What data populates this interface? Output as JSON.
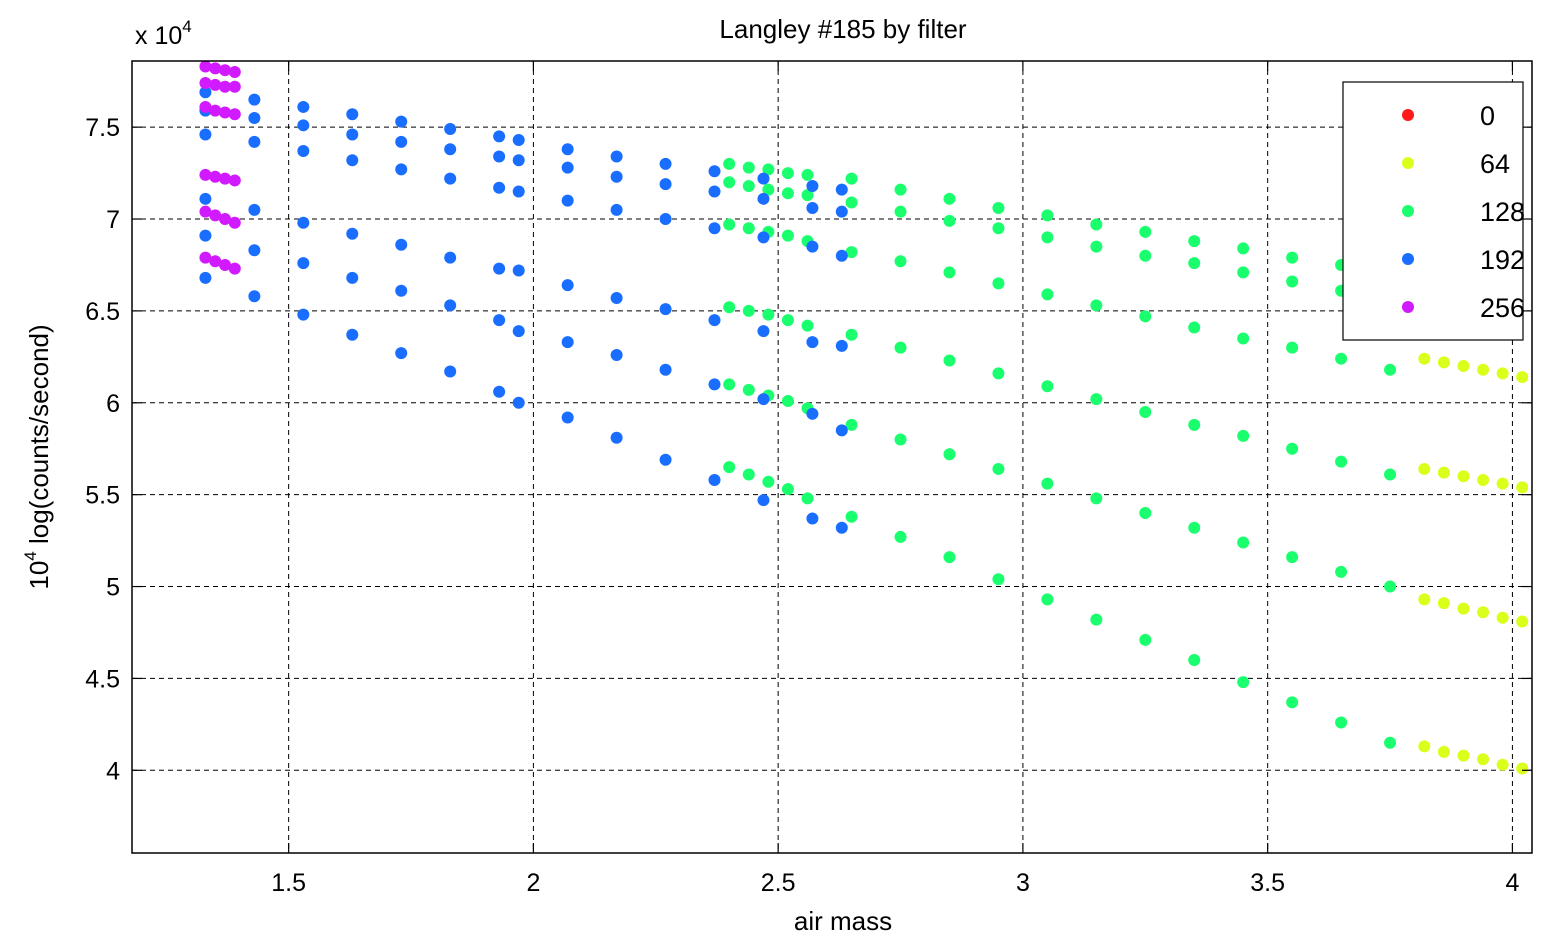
{
  "chart_data": {
    "type": "scatter",
    "title": "Langley #185 by filter",
    "xlabel": "air mass",
    "ylabel_base": "10",
    "ylabel_exp": "4",
    "ylabel_rest": " log(counts/second)",
    "multiplier_prefix": "x 10",
    "multiplier_exp": "4",
    "xlim": [
      1.18,
      4.04
    ],
    "ylim": [
      3.55,
      7.86
    ],
    "xticks": [
      1.5,
      2,
      2.5,
      3,
      3.5,
      4
    ],
    "xtick_labels": [
      "1.5",
      "2",
      "2.5",
      "3",
      "3.5",
      "4"
    ],
    "yticks": [
      4,
      4.5,
      5,
      5.5,
      6,
      6.5,
      7,
      7.5
    ],
    "ytick_labels": [
      "4",
      "4.5",
      "5",
      "5.5",
      "6",
      "6.5",
      "7",
      "7.5"
    ],
    "grid": true,
    "legend_position": "top-right",
    "series": [
      {
        "name": "0",
        "color": "#ff1a1a",
        "x": [],
        "y": []
      },
      {
        "name": "64",
        "color": "#d9ff1a",
        "x": [
          3.82,
          3.86,
          3.9,
          3.94,
          3.98,
          4.02,
          3.82,
          3.86,
          3.9,
          3.94,
          3.98,
          4.02,
          3.82,
          3.86,
          3.9,
          3.94,
          3.98,
          4.02,
          3.82,
          3.86,
          3.9,
          3.94,
          3.98,
          4.02
        ],
        "y": [
          6.24,
          6.22,
          6.2,
          6.18,
          6.16,
          6.14,
          5.64,
          5.62,
          5.6,
          5.58,
          5.56,
          5.54,
          4.93,
          4.91,
          4.88,
          4.86,
          4.83,
          4.81,
          4.13,
          4.1,
          4.08,
          4.06,
          4.03,
          4.01
        ]
      },
      {
        "name": "128",
        "color": "#1aff6e",
        "x": [
          2.4,
          2.44,
          2.48,
          2.52,
          2.56,
          2.4,
          2.44,
          2.48,
          2.52,
          2.56,
          2.4,
          2.44,
          2.48,
          2.52,
          2.56,
          2.4,
          2.44,
          2.48,
          2.52,
          2.56,
          2.4,
          2.44,
          2.48,
          2.52,
          2.56,
          2.4,
          2.44,
          2.48,
          2.52,
          2.56,
          2.65,
          2.75,
          2.85,
          2.95,
          3.05,
          3.15,
          3.25,
          3.35,
          3.45,
          3.55,
          3.65,
          3.75,
          2.65,
          2.75,
          2.85,
          2.95,
          3.05,
          3.15,
          3.25,
          3.35,
          3.45,
          3.55,
          3.65,
          3.75,
          2.65,
          2.75,
          2.85,
          2.95,
          3.05,
          3.15,
          3.25,
          3.35,
          3.45,
          3.55,
          3.65,
          3.75,
          2.65,
          2.75,
          2.85,
          2.95,
          3.05,
          3.15,
          3.25,
          3.35,
          3.45,
          3.55,
          3.65,
          3.75,
          2.65,
          2.75,
          2.85,
          2.95,
          3.05,
          3.15,
          3.25,
          3.35,
          3.45,
          3.55,
          3.65,
          3.75,
          2.65,
          2.75,
          2.85,
          2.95,
          3.05,
          3.15,
          3.25,
          3.35,
          3.45,
          3.55,
          3.65,
          3.75
        ],
        "y": [
          7.3,
          7.28,
          7.27,
          7.25,
          7.24,
          7.2,
          7.18,
          7.16,
          7.14,
          7.13,
          6.97,
          6.95,
          6.93,
          6.91,
          6.88,
          6.52,
          6.5,
          6.48,
          6.45,
          6.42,
          6.1,
          6.07,
          6.04,
          6.01,
          5.97,
          5.65,
          5.61,
          5.57,
          5.53,
          5.48,
          7.22,
          7.16,
          7.11,
          7.06,
          7.02,
          6.97,
          6.93,
          6.88,
          6.84,
          6.79,
          6.75,
          6.71,
          7.09,
          7.04,
          6.99,
          6.95,
          6.9,
          6.85,
          6.8,
          6.76,
          6.71,
          6.66,
          6.61,
          6.57,
          6.82,
          6.77,
          6.71,
          6.65,
          6.59,
          6.53,
          6.47,
          6.41,
          6.35,
          6.3,
          6.24,
          6.18,
          6.37,
          6.3,
          6.23,
          6.16,
          6.09,
          6.02,
          5.95,
          5.88,
          5.82,
          5.75,
          5.68,
          5.61,
          5.88,
          5.8,
          5.72,
          5.64,
          5.56,
          5.48,
          5.4,
          5.32,
          5.24,
          5.16,
          5.08,
          5.0,
          5.38,
          5.27,
          5.16,
          5.04,
          4.93,
          4.82,
          4.71,
          4.6,
          4.48,
          4.37,
          4.26,
          4.15
        ]
      },
      {
        "name": "192",
        "color": "#1a6eff",
        "x": [
          1.33,
          1.43,
          1.53,
          1.63,
          1.73,
          1.83,
          1.93,
          1.97,
          2.07,
          2.17,
          2.27,
          2.37,
          2.47,
          2.57,
          2.63,
          1.33,
          1.43,
          1.53,
          1.63,
          1.73,
          1.83,
          1.93,
          1.97,
          2.07,
          2.17,
          2.27,
          2.37,
          2.47,
          2.57,
          2.63,
          1.33,
          1.43,
          1.53,
          1.63,
          1.73,
          1.83,
          1.93,
          1.97,
          2.07,
          2.17,
          2.27,
          2.37,
          2.47,
          2.57,
          2.63,
          1.33,
          1.43,
          1.53,
          1.63,
          1.73,
          1.83,
          1.93,
          1.97,
          2.07,
          2.17,
          2.27,
          2.37,
          2.47,
          2.57,
          2.63,
          1.33,
          1.43,
          1.53,
          1.63,
          1.73,
          1.83,
          1.93,
          1.97,
          2.07,
          2.17,
          2.27,
          2.37,
          2.47,
          2.57,
          2.63,
          1.33,
          1.43,
          1.53,
          1.63,
          1.73,
          1.83,
          1.93,
          1.97,
          2.07,
          2.17,
          2.27,
          2.37,
          2.47,
          2.57,
          2.63
        ],
        "y": [
          7.69,
          7.65,
          7.61,
          7.57,
          7.53,
          7.49,
          7.45,
          7.43,
          7.38,
          7.34,
          7.3,
          7.26,
          7.22,
          7.18,
          7.16,
          7.59,
          7.55,
          7.51,
          7.46,
          7.42,
          7.38,
          7.34,
          7.32,
          7.28,
          7.23,
          7.19,
          7.15,
          7.11,
          7.06,
          7.04,
          7.46,
          7.42,
          7.37,
          7.32,
          7.27,
          7.22,
          7.17,
          7.15,
          7.1,
          7.05,
          7.0,
          6.95,
          6.9,
          6.85,
          6.8,
          7.11,
          7.05,
          6.98,
          6.92,
          6.86,
          6.79,
          6.73,
          6.72,
          6.64,
          6.57,
          6.51,
          6.45,
          6.39,
          6.33,
          6.31,
          6.91,
          6.83,
          6.76,
          6.68,
          6.61,
          6.53,
          6.45,
          6.39,
          6.33,
          6.26,
          6.18,
          6.1,
          6.02,
          5.94,
          5.85,
          6.68,
          6.58,
          6.48,
          6.37,
          6.27,
          6.17,
          6.06,
          6.0,
          5.92,
          5.81,
          5.69,
          5.58,
          5.47,
          5.37,
          5.32
        ]
      },
      {
        "name": "256",
        "color": "#d21aff",
        "x": [
          1.33,
          1.35,
          1.37,
          1.39,
          1.33,
          1.35,
          1.37,
          1.39,
          1.33,
          1.35,
          1.37,
          1.39,
          1.33,
          1.35,
          1.37,
          1.39,
          1.33,
          1.35,
          1.37,
          1.39,
          1.33,
          1.35,
          1.37,
          1.39
        ],
        "y": [
          7.83,
          7.82,
          7.81,
          7.8,
          7.74,
          7.73,
          7.72,
          7.72,
          7.61,
          7.59,
          7.58,
          7.57,
          7.24,
          7.23,
          7.22,
          7.21,
          7.04,
          7.02,
          7.0,
          6.98,
          6.79,
          6.77,
          6.75,
          6.73
        ]
      }
    ]
  }
}
